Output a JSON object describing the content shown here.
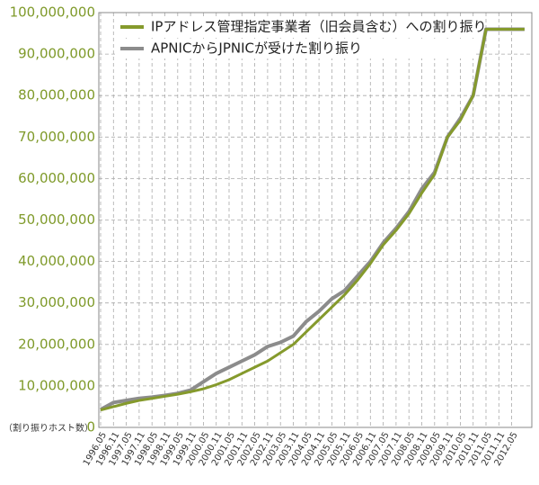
{
  "chart_data": {
    "type": "line",
    "y_axis_label": "（割り振りホスト数）",
    "categories": [
      "1996.05",
      "1996.11",
      "1997.05",
      "1997.11",
      "1998.05",
      "1998.11",
      "1999.05",
      "1999.11",
      "2000.05",
      "2000.11",
      "2001.05",
      "2001.11",
      "2002.05",
      "2002.11",
      "2003.05",
      "2003.11",
      "2004.05",
      "2004.11",
      "2005.05",
      "2005.11",
      "2006.05",
      "2006.11",
      "2007.05",
      "2007.11",
      "2008.05",
      "2008.11",
      "2009.05",
      "2009.11",
      "2010.05",
      "2010.11",
      "2011.05",
      "2011.11",
      "2012.05",
      null
    ],
    "series": [
      {
        "name": "IPアドレス管理指定事業者（旧会員含む）への割り振り",
        "color": "#859a2c",
        "values": [
          4200000,
          5000000,
          5800000,
          6500000,
          7000000,
          7500000,
          8000000,
          8600000,
          9300000,
          10300000,
          11500000,
          13000000,
          14500000,
          16000000,
          18000000,
          20000000,
          23000000,
          26000000,
          29000000,
          32000000,
          35500000,
          39500000,
          44000000,
          47500000,
          51500000,
          56500000,
          61000000,
          70000000,
          74000000,
          80000000,
          96000000,
          96000000,
          96000000,
          96000000
        ]
      },
      {
        "name": "APNICからJPNICが受けた割り振り",
        "color": "#8c8c8c",
        "values": [
          4300000,
          6000000,
          6500000,
          7000000,
          7300000,
          7700000,
          8200000,
          9000000,
          11000000,
          13000000,
          14500000,
          16000000,
          17500000,
          19500000,
          20500000,
          22000000,
          25500000,
          28000000,
          31000000,
          33000000,
          36500000,
          40000000,
          44500000,
          48000000,
          52000000,
          57500000,
          61500000,
          70000000,
          74500000,
          80000000,
          96000000,
          96000000,
          96000000,
          96000000
        ]
      }
    ],
    "ylim": [
      0,
      100000000
    ],
    "yticks": [
      {
        "value": 0,
        "label": "0"
      },
      {
        "value": 10000000,
        "label": "10,000,000"
      },
      {
        "value": 20000000,
        "label": "20,000,000"
      },
      {
        "value": 30000000,
        "label": "30,000,000"
      },
      {
        "value": 40000000,
        "label": "40,000,000"
      },
      {
        "value": 50000000,
        "label": "50,000,000"
      },
      {
        "value": 60000000,
        "label": "60,000,000"
      },
      {
        "value": 70000000,
        "label": "70,000,000"
      },
      {
        "value": 80000000,
        "label": "80,000,000"
      },
      {
        "value": 90000000,
        "label": "90,000,000"
      },
      {
        "value": 100000000,
        "label": "100,000,000"
      }
    ],
    "grid": true
  }
}
